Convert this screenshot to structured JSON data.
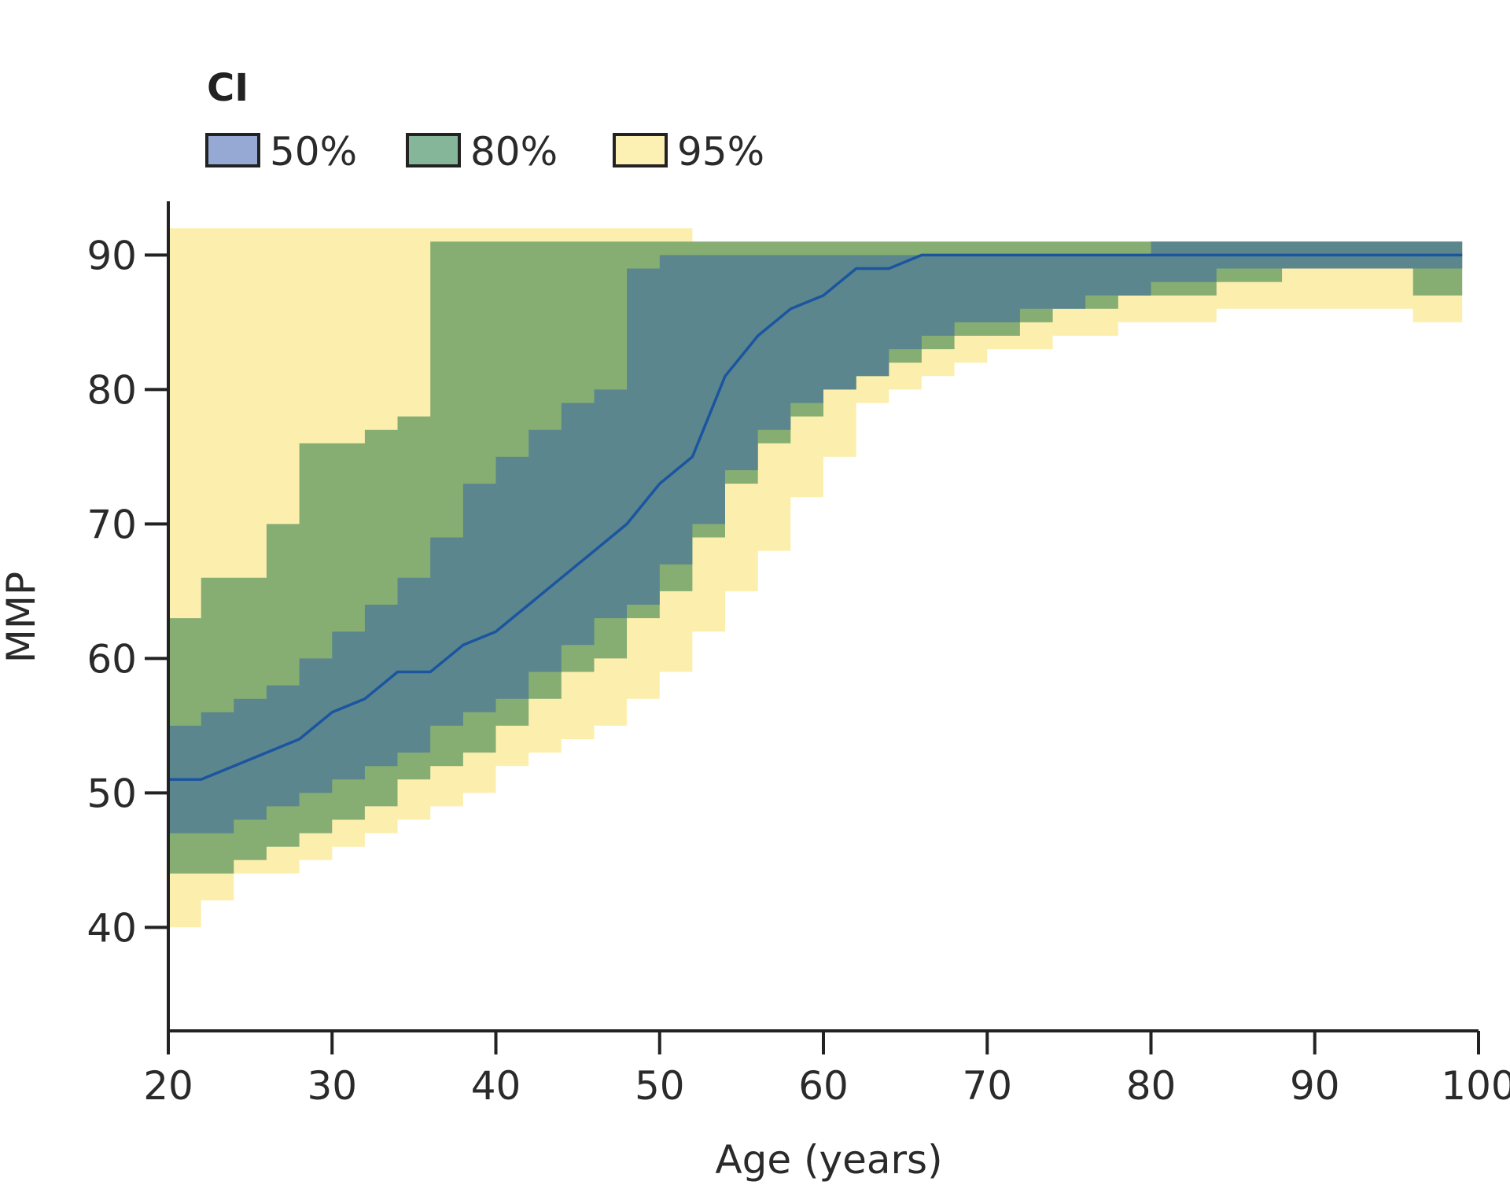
{
  "chart_data": {
    "type": "area",
    "title": "",
    "xlabel": "Age (years)",
    "ylabel": "MMP",
    "xlim": [
      20,
      100
    ],
    "ylim": [
      32.3,
      94
    ],
    "x_ticks": [
      20,
      30,
      40,
      50,
      60,
      70,
      80,
      90,
      100
    ],
    "y_ticks": [
      40,
      50,
      60,
      70,
      80,
      90
    ],
    "grid": false,
    "legend": {
      "title": "CI",
      "position": "top-left",
      "entries": [
        {
          "label": "50%",
          "color": "#96a8d4"
        },
        {
          "label": "80%",
          "color": "#86b69a"
        },
        {
          "label": "95%",
          "color": "#fdf0b3"
        }
      ]
    },
    "colors": {
      "band95": "#fcefae",
      "band80": "#86ae73",
      "band50": "#5b868d",
      "median_line": "#1b55a0"
    },
    "x": [
      20,
      22,
      24,
      26,
      28,
      30,
      32,
      34,
      36,
      38,
      40,
      42,
      44,
      46,
      48,
      50,
      52,
      54,
      56,
      58,
      60,
      62,
      64,
      66,
      68,
      70,
      72,
      74,
      76,
      78,
      80,
      82,
      84,
      86,
      88,
      90,
      92,
      94,
      96,
      99
    ],
    "median": [
      51,
      51,
      52,
      53,
      54,
      56,
      57,
      59,
      59,
      61,
      62,
      64,
      66,
      68,
      70,
      73,
      75,
      81,
      84,
      86,
      87,
      89,
      89,
      90,
      90,
      90,
      90,
      90,
      90,
      90,
      90,
      90,
      90,
      90,
      90,
      90,
      90,
      90,
      90,
      90
    ],
    "band50": {
      "lower": [
        47,
        47,
        48,
        49,
        50,
        51,
        52,
        53,
        55,
        56,
        57,
        59,
        61,
        63,
        64,
        67,
        70,
        74,
        77,
        79,
        80,
        81,
        83,
        84,
        85,
        85,
        86,
        86,
        87,
        87,
        88,
        88,
        89,
        89,
        89,
        89,
        89,
        89,
        89,
        89
      ],
      "upper": [
        55,
        56,
        57,
        58,
        60,
        62,
        64,
        66,
        69,
        73,
        75,
        77,
        79,
        80,
        89,
        90,
        90,
        90,
        90,
        90,
        90,
        90,
        90,
        90,
        90,
        90,
        90,
        90,
        90,
        90,
        91,
        91,
        91,
        91,
        91,
        91,
        91,
        91,
        91,
        91
      ]
    },
    "band80": {
      "lower": [
        44,
        44,
        45,
        46,
        47,
        48,
        49,
        51,
        52,
        53,
        55,
        57,
        59,
        60,
        63,
        65,
        69,
        73,
        76,
        78,
        80,
        81,
        82,
        83,
        84,
        84,
        85,
        86,
        86,
        87,
        87,
        87,
        88,
        88,
        89,
        89,
        89,
        89,
        87,
        86
      ],
      "upper": [
        63,
        66,
        66,
        70,
        76,
        76,
        77,
        78,
        91,
        91,
        91,
        91,
        91,
        91,
        91,
        91,
        91,
        91,
        91,
        91,
        91,
        91,
        91,
        91,
        91,
        91,
        91,
        91,
        91,
        91,
        91,
        91,
        91,
        91,
        91,
        91,
        91,
        91,
        91,
        91
      ]
    },
    "band95": {
      "lower": [
        40,
        42,
        44,
        44,
        45,
        46,
        47,
        48,
        49,
        50,
        52,
        53,
        54,
        55,
        57,
        59,
        62,
        65,
        68,
        72,
        75,
        79,
        80,
        81,
        82,
        83,
        83,
        84,
        84,
        85,
        85,
        85,
        86,
        86,
        86,
        86,
        86,
        86,
        85,
        85
      ],
      "upper": [
        92,
        92,
        92,
        92,
        92,
        92,
        92,
        92,
        92,
        92,
        92,
        92,
        92,
        92,
        92,
        92,
        91,
        91,
        91,
        91,
        91,
        91,
        91,
        91,
        91,
        91,
        91,
        91,
        91,
        91,
        91,
        91,
        91,
        91,
        91,
        91,
        91,
        91,
        91,
        91
      ]
    }
  }
}
